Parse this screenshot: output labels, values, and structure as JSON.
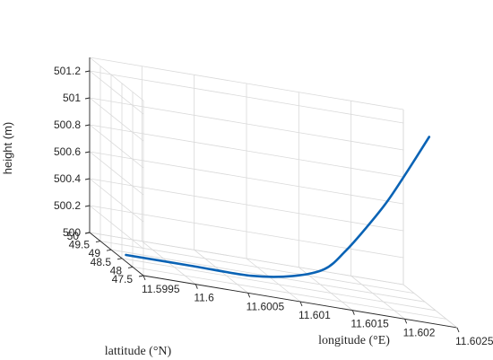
{
  "chart_data": {
    "type": "line",
    "projection": "3d",
    "grid": true,
    "xlabel": "longitude (°E)",
    "ylabel": "lattitude (°N)",
    "zlabel": "height (m)",
    "xlim": [
      11.5995,
      11.6025
    ],
    "ylim": [
      47.5,
      50
    ],
    "zlim": [
      500,
      501.3
    ],
    "x_ticks": [
      "11.5995",
      "11.6",
      "11.6005",
      "11.601",
      "11.6015",
      "11.602",
      "11.6025"
    ],
    "y_ticks": [
      "47.5",
      "48",
      "48.5",
      "49",
      "49.5",
      "50"
    ],
    "z_ticks": [
      "500",
      "500.2",
      "500.4",
      "500.6",
      "500.8",
      "501",
      "501.2"
    ],
    "series": [
      {
        "color": "#0a63b5",
        "points": [
          {
            "x": 11.5996,
            "y": 48.8,
            "z": 500.0
          },
          {
            "x": 11.6002,
            "y": 48.8,
            "z": 500.0
          },
          {
            "x": 11.6008,
            "y": 48.8,
            "z": 500.0
          },
          {
            "x": 11.6012,
            "y": 48.8,
            "z": 500.05
          },
          {
            "x": 11.6015,
            "y": 48.8,
            "z": 500.14
          },
          {
            "x": 11.6017,
            "y": 48.8,
            "z": 500.3
          },
          {
            "x": 11.6019,
            "y": 48.8,
            "z": 500.5
          },
          {
            "x": 11.6021,
            "y": 48.8,
            "z": 500.72
          },
          {
            "x": 11.6023,
            "y": 48.8,
            "z": 500.98
          },
          {
            "x": 11.6025,
            "y": 48.8,
            "z": 501.25
          }
        ]
      }
    ]
  }
}
